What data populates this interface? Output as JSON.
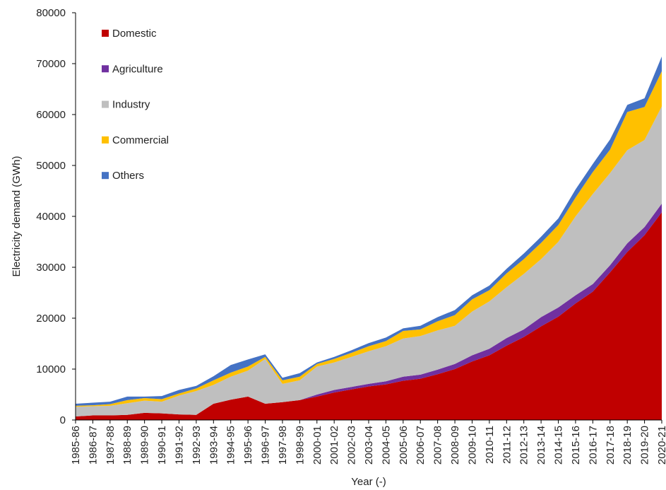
{
  "chart_data": {
    "type": "stacked_area",
    "x_label": "Year (-)",
    "y_label": "Electricity demand (GWh)",
    "categories": [
      "1985-86",
      "1986-87",
      "1987-88",
      "1988-89",
      "1989-90",
      "1990-91",
      "1991-92",
      "1992-93",
      "1993-94",
      "1994-95",
      "1995-96",
      "1996-97",
      "1997-98",
      "1998-99",
      "2000-01",
      "2001-02",
      "2002-03",
      "2003-04",
      "2004-05",
      "2005-06",
      "2006-07",
      "2007-08",
      "2008-09",
      "2009-10",
      "2010-11",
      "2011-12",
      "2012-13",
      "2013-14",
      "2014-15",
      "2015-16",
      "2016-17",
      "2017-18",
      "2018-19",
      "2019-20",
      "2020-21"
    ],
    "series": [
      {
        "name": "Domestic",
        "color": "#c00000",
        "values": [
          700,
          900,
          900,
          1000,
          1400,
          1300,
          1100,
          1000,
          3200,
          4000,
          4600,
          3200,
          3500,
          3900,
          4600,
          5400,
          6000,
          6600,
          7000,
          7700,
          8100,
          9000,
          10000,
          11500,
          12700,
          14600,
          16300,
          18400,
          20300,
          22900,
          25200,
          29000,
          33000,
          36300,
          40800
        ]
      },
      {
        "name": "Agriculture",
        "color": "#7030a0",
        "values": [
          0,
          0,
          0,
          0,
          0,
          0,
          0,
          0,
          0,
          0,
          0,
          0,
          0,
          0,
          400,
          500,
          500,
          500,
          600,
          800,
          800,
          900,
          1000,
          1200,
          1300,
          1500,
          1500,
          1800,
          1800,
          1600,
          1500,
          1400,
          1700,
          1600,
          1700
        ]
      },
      {
        "name": "Industry",
        "color": "#bfbfbf",
        "values": [
          1900,
          1800,
          1900,
          2300,
          2400,
          2300,
          3700,
          4700,
          3700,
          4500,
          5100,
          8800,
          3600,
          3900,
          5500,
          5400,
          5900,
          6400,
          6900,
          7500,
          7600,
          7700,
          7500,
          8600,
          9300,
          10000,
          10900,
          11400,
          12900,
          15500,
          17700,
          18100,
          18300,
          17100,
          19100
        ]
      },
      {
        "name": "Commercial",
        "color": "#ffc000",
        "values": [
          200,
          200,
          300,
          600,
          500,
          500,
          400,
          500,
          900,
          800,
          800,
          400,
          700,
          700,
          500,
          700,
          800,
          1000,
          1000,
          1500,
          1300,
          1800,
          2100,
          2400,
          2200,
          2700,
          2900,
          3200,
          3300,
          3700,
          4300,
          4600,
          7500,
          6500,
          6900
        ]
      },
      {
        "name": "Others",
        "color": "#4472c4",
        "values": [
          400,
          500,
          500,
          700,
          300,
          600,
          700,
          500,
          800,
          1500,
          1400,
          500,
          500,
          700,
          300,
          400,
          500,
          600,
          700,
          500,
          700,
          800,
          1000,
          800,
          900,
          900,
          1100,
          1200,
          1300,
          1600,
          1600,
          2000,
          1400,
          1700,
          2900
        ]
      }
    ],
    "ylim": [
      0,
      80000
    ],
    "yticks": [
      0,
      10000,
      20000,
      30000,
      40000,
      50000,
      60000,
      70000,
      80000
    ]
  }
}
